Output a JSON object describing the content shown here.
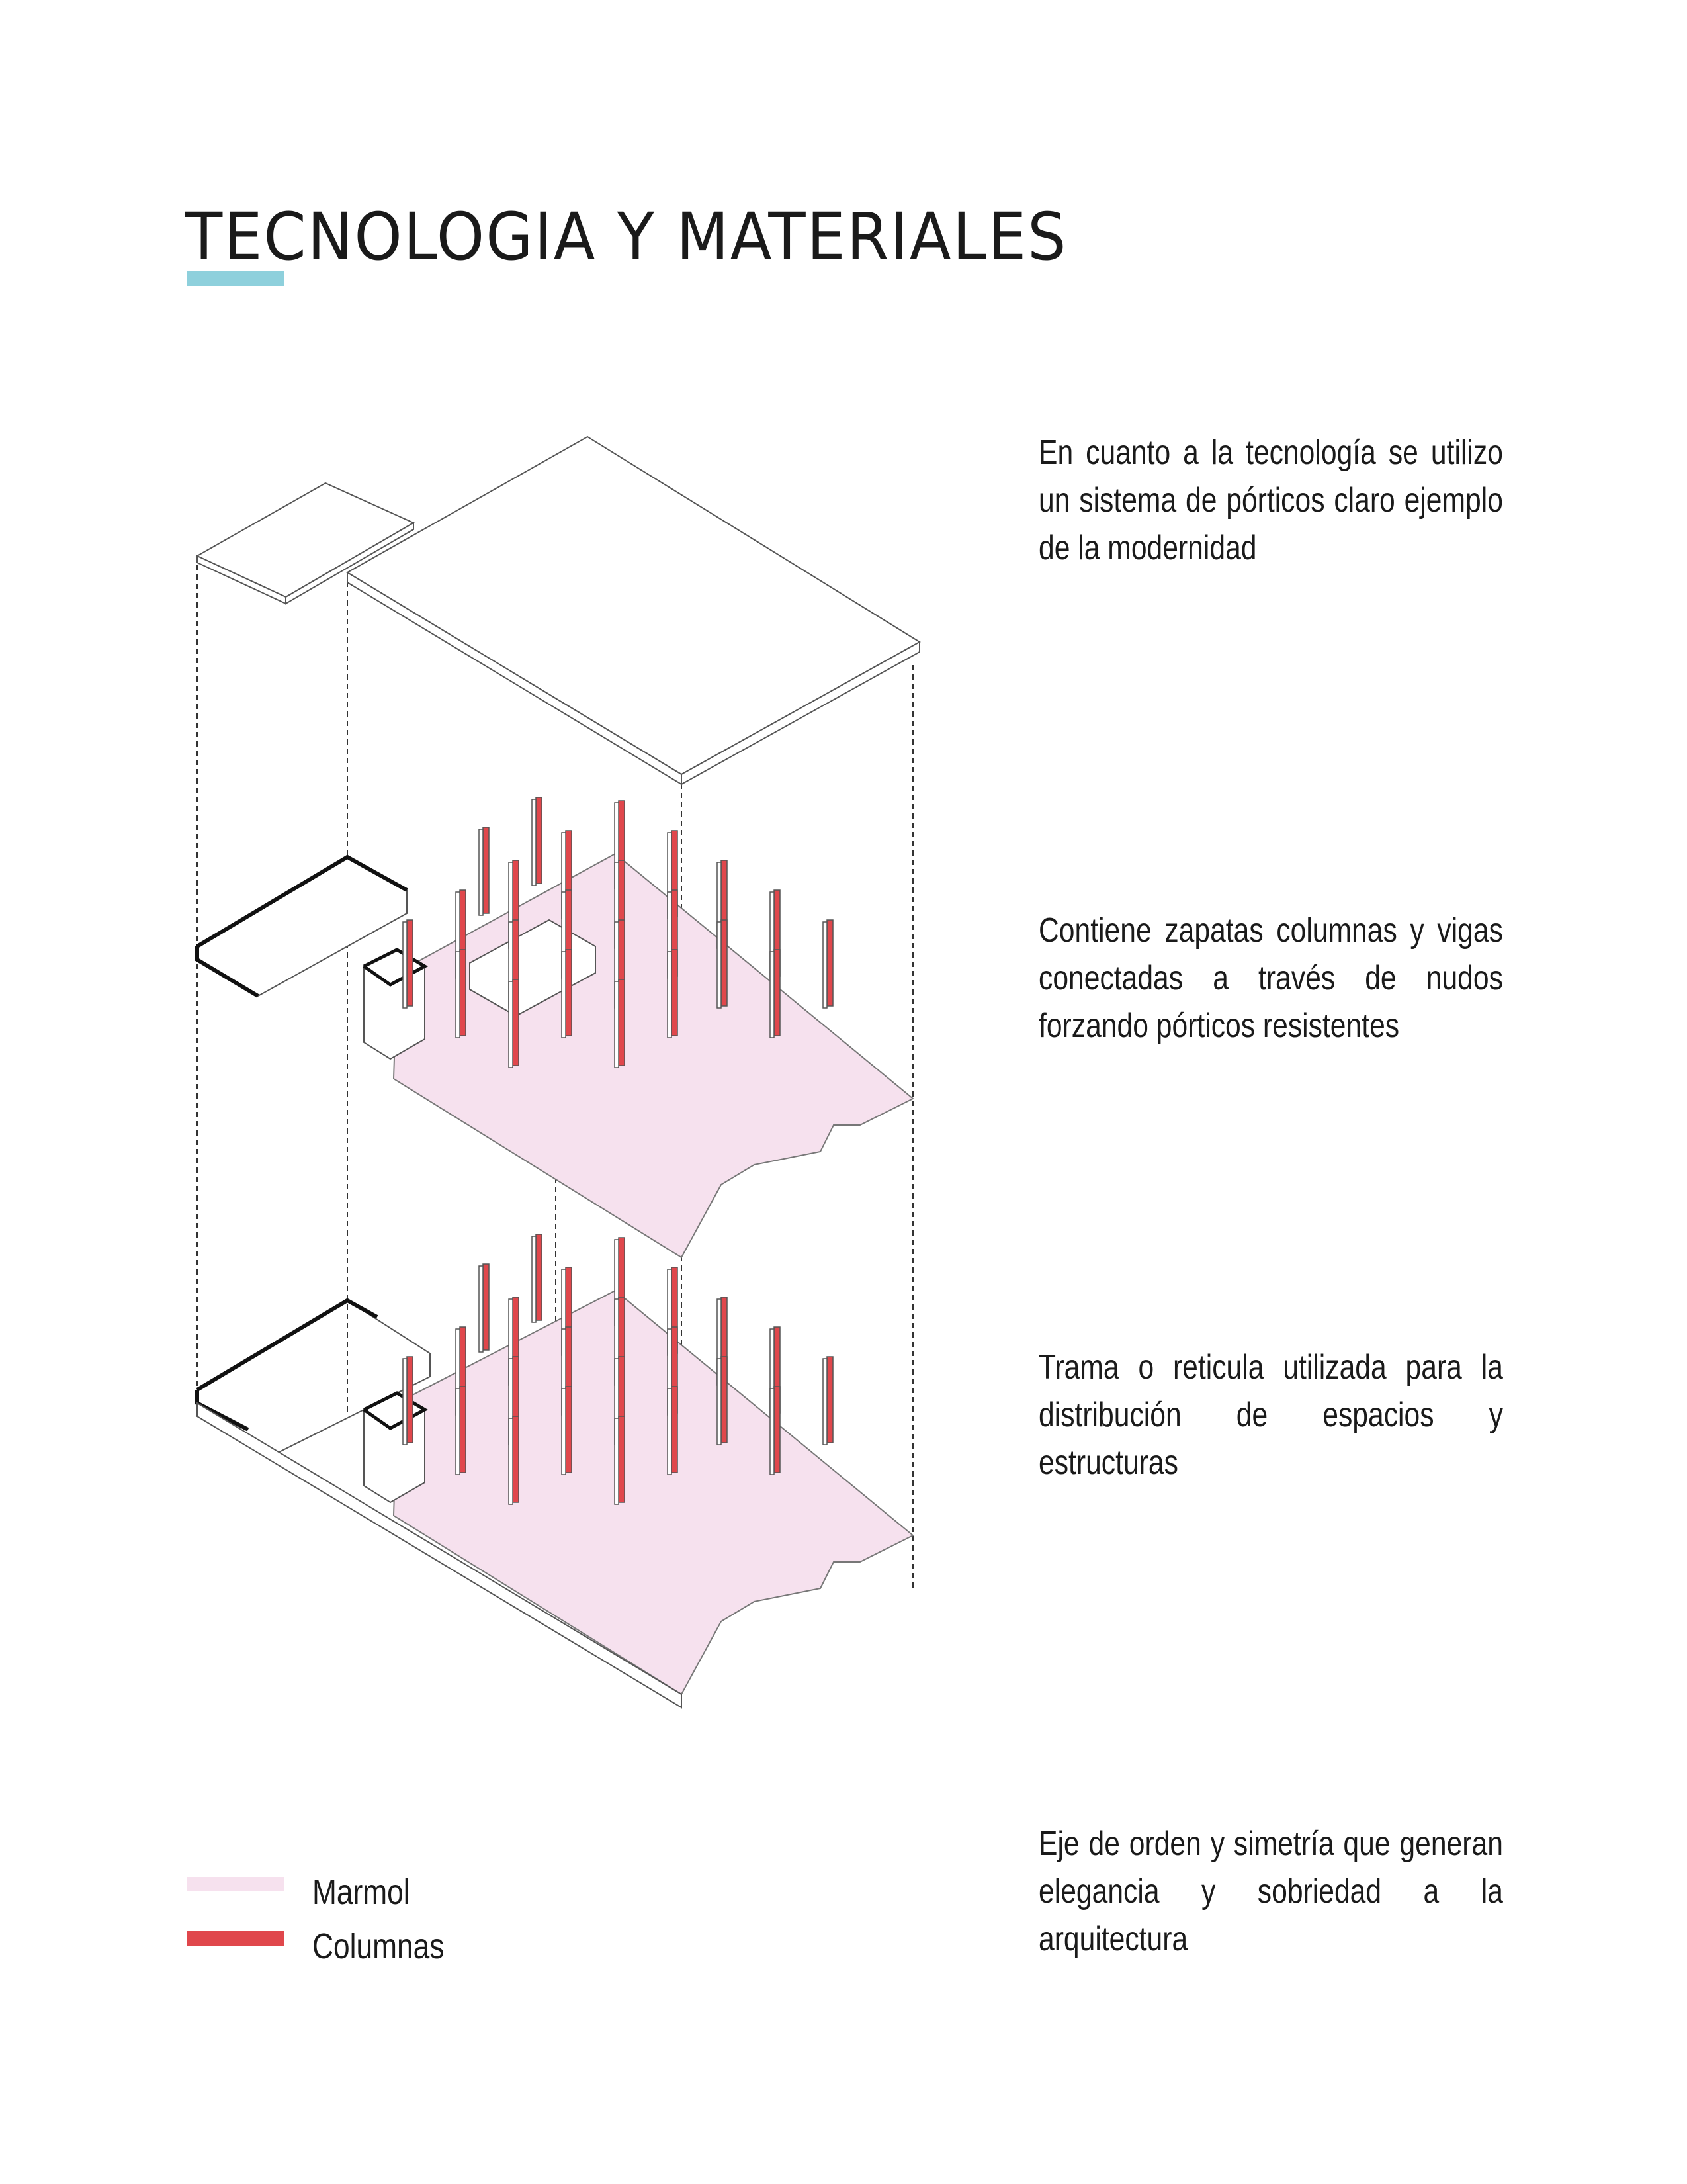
{
  "title": "TECNOLOGIA Y MATERIALES",
  "colors": {
    "accent": "#8ed0dc",
    "marmol": "#f6e1ee",
    "columnas": "#e0474c",
    "line": "#555555"
  },
  "paragraphs": [
    "En cuanto a la tecnología se utilizo un sistema de pórticos claro ejemplo de la modernidad",
    "Contiene zapatas columnas y vigas conectadas a través de nudos forzando pórticos resistentes",
    "Trama o reticula utilizada para la distribución de espacios y estructuras",
    "Eje de orden y simetría que generan elegancia y sobriedad a la arquitectura"
  ],
  "legend": [
    {
      "label": "Marmol",
      "color": "#f6e1ee"
    },
    {
      "label": "Columnas",
      "color": "#e0474c"
    }
  ]
}
